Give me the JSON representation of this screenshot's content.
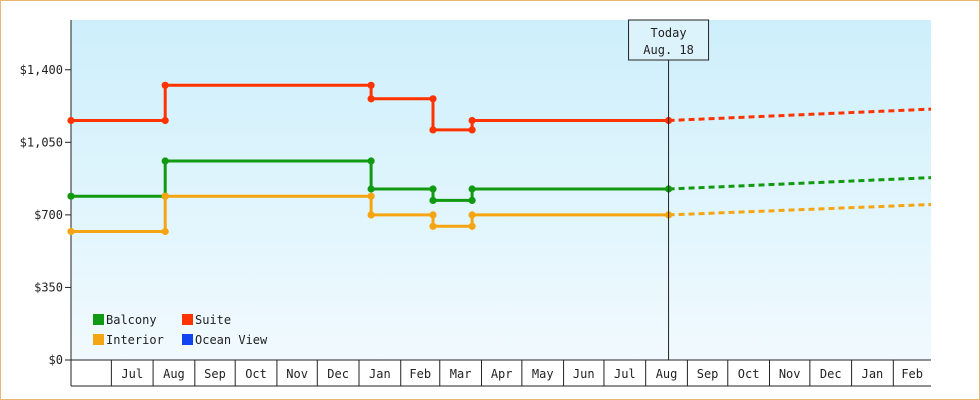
{
  "chart_data": {
    "type": "line",
    "title": "",
    "xlabel": "",
    "ylabel": "",
    "ylim": [
      0,
      1640
    ],
    "yticks": [
      {
        "value": 0,
        "label": "$0"
      },
      {
        "value": 350,
        "label": "$350"
      },
      {
        "value": 700,
        "label": "$700"
      },
      {
        "value": 1050,
        "label": "$1,050"
      },
      {
        "value": 1400,
        "label": "$1,400"
      }
    ],
    "months": [
      "Jul",
      "Aug",
      "Sep",
      "Oct",
      "Nov",
      "Dec",
      "Jan",
      "Feb",
      "Mar",
      "Apr",
      "May",
      "Jun",
      "Jul",
      "Aug",
      "Sep",
      "Oct",
      "Nov",
      "Dec",
      "Jan",
      "Feb"
    ],
    "x_range": [
      "2015-06-01",
      "2017-03-01"
    ],
    "today": {
      "label_line1": "Today",
      "label_line2": "Aug. 18",
      "date": "2016-08-18"
    },
    "grid": false,
    "legend_position": "bottom-left",
    "series": [
      {
        "name": "Balcony",
        "color": "#119911",
        "points": [
          [
            "2015-06-01",
            790
          ],
          [
            "2015-08-10",
            790
          ],
          [
            "2015-08-10",
            960
          ],
          [
            "2016-01-10",
            960
          ],
          [
            "2016-01-10",
            825
          ],
          [
            "2016-02-25",
            825
          ],
          [
            "2016-02-25",
            770
          ],
          [
            "2016-03-25",
            770
          ],
          [
            "2016-03-25",
            825
          ],
          [
            "2016-08-18",
            825
          ]
        ],
        "forecast": [
          [
            "2016-08-18",
            825
          ],
          [
            "2017-03-01",
            880
          ]
        ]
      },
      {
        "name": "Suite",
        "color": "#ff3300",
        "points": [
          [
            "2015-06-01",
            1155
          ],
          [
            "2015-08-10",
            1155
          ],
          [
            "2015-08-10",
            1325
          ],
          [
            "2016-01-10",
            1325
          ],
          [
            "2016-01-10",
            1260
          ],
          [
            "2016-02-25",
            1260
          ],
          [
            "2016-02-25",
            1110
          ],
          [
            "2016-03-25",
            1110
          ],
          [
            "2016-03-25",
            1155
          ],
          [
            "2016-08-18",
            1155
          ]
        ],
        "forecast": [
          [
            "2016-08-18",
            1155
          ],
          [
            "2017-03-01",
            1210
          ]
        ]
      },
      {
        "name": "Interior",
        "color": "#f5a511",
        "points": [
          [
            "2015-06-01",
            620
          ],
          [
            "2015-08-10",
            620
          ],
          [
            "2015-08-10",
            790
          ],
          [
            "2016-01-10",
            790
          ],
          [
            "2016-01-10",
            700
          ],
          [
            "2016-02-25",
            700
          ],
          [
            "2016-02-25",
            645
          ],
          [
            "2016-03-25",
            645
          ],
          [
            "2016-03-25",
            700
          ],
          [
            "2016-08-18",
            700
          ]
        ],
        "forecast": [
          [
            "2016-08-18",
            700
          ],
          [
            "2017-03-01",
            750
          ]
        ]
      },
      {
        "name": "Ocean View",
        "color": "#1144ee",
        "points": [],
        "forecast": []
      }
    ]
  }
}
